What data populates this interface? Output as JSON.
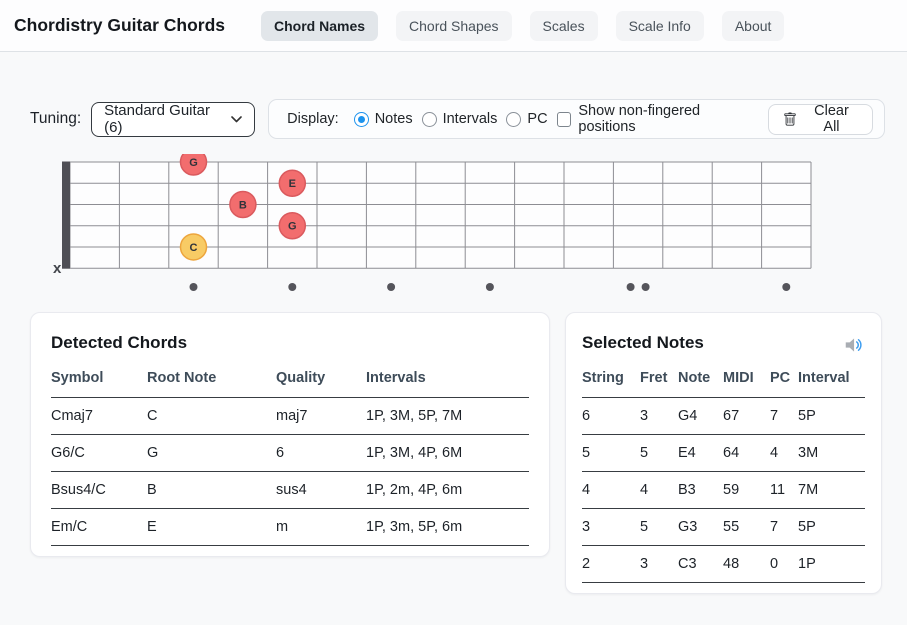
{
  "header": {
    "title": "Chordistry Guitar Chords",
    "tabs": [
      {
        "label": "Chord Names",
        "active": true
      },
      {
        "label": "Chord Shapes",
        "active": false
      },
      {
        "label": "Scales",
        "active": false
      },
      {
        "label": "Scale Info",
        "active": false
      },
      {
        "label": "About",
        "active": false
      }
    ]
  },
  "controls": {
    "tuning_label": "Tuning:",
    "tuning_value": "Standard Guitar (6)",
    "display_label": "Display:",
    "display_options": [
      {
        "label": "Notes",
        "selected": true
      },
      {
        "label": "Intervals",
        "selected": false
      },
      {
        "label": "PC",
        "selected": false
      }
    ],
    "checkbox_label": "Show non-fingered positions",
    "checkbox_checked": false,
    "clear_all_label": "Clear All"
  },
  "fretboard": {
    "num_frets": 15,
    "num_strings": 6,
    "muted_marker": "x",
    "single_dot_frets": [
      3,
      5,
      7,
      9,
      15
    ],
    "double_dot_frets": [
      12
    ],
    "notes": [
      {
        "string": 1,
        "fret": 3,
        "label": "G",
        "role": "note"
      },
      {
        "string": 2,
        "fret": 5,
        "label": "E",
        "role": "note"
      },
      {
        "string": 3,
        "fret": 4,
        "label": "B",
        "role": "note"
      },
      {
        "string": 4,
        "fret": 5,
        "label": "G",
        "role": "note"
      },
      {
        "string": 5,
        "fret": 3,
        "label": "C",
        "role": "root"
      }
    ],
    "colors": {
      "note_fill": "#f26d6e",
      "note_border": "#da5a5e",
      "root_fill": "#f8cb65",
      "root_border": "#eda53d",
      "grid_line": "#8d8d93",
      "nut": "#4f4f55",
      "dot": "#55555b",
      "board_bg": "#fdfdfe"
    }
  },
  "detected_chords": {
    "title": "Detected Chords",
    "headers": [
      "Symbol",
      "Root Note",
      "Quality",
      "Intervals"
    ],
    "rows": [
      [
        "Cmaj7",
        "C",
        "maj7",
        "1P, 3M, 5P, 7M"
      ],
      [
        "G6/C",
        "G",
        "6",
        "1P, 3M, 4P, 6M"
      ],
      [
        "Bsus4/C",
        "B",
        "sus4",
        "1P, 2m, 4P, 6m"
      ],
      [
        "Em/C",
        "E",
        "m",
        "1P, 3m, 5P, 6m"
      ]
    ]
  },
  "selected_notes": {
    "title": "Selected Notes",
    "headers": [
      "String",
      "Fret",
      "Note",
      "MIDI",
      "PC",
      "Interval"
    ],
    "rows": [
      [
        "6",
        "3",
        "G4",
        "67",
        "7",
        "5P"
      ],
      [
        "5",
        "5",
        "E4",
        "64",
        "4",
        "3M"
      ],
      [
        "4",
        "4",
        "B3",
        "59",
        "11",
        "7M"
      ],
      [
        "3",
        "5",
        "G3",
        "55",
        "7",
        "5P"
      ],
      [
        "2",
        "3",
        "C3",
        "48",
        "0",
        "1P"
      ]
    ]
  }
}
